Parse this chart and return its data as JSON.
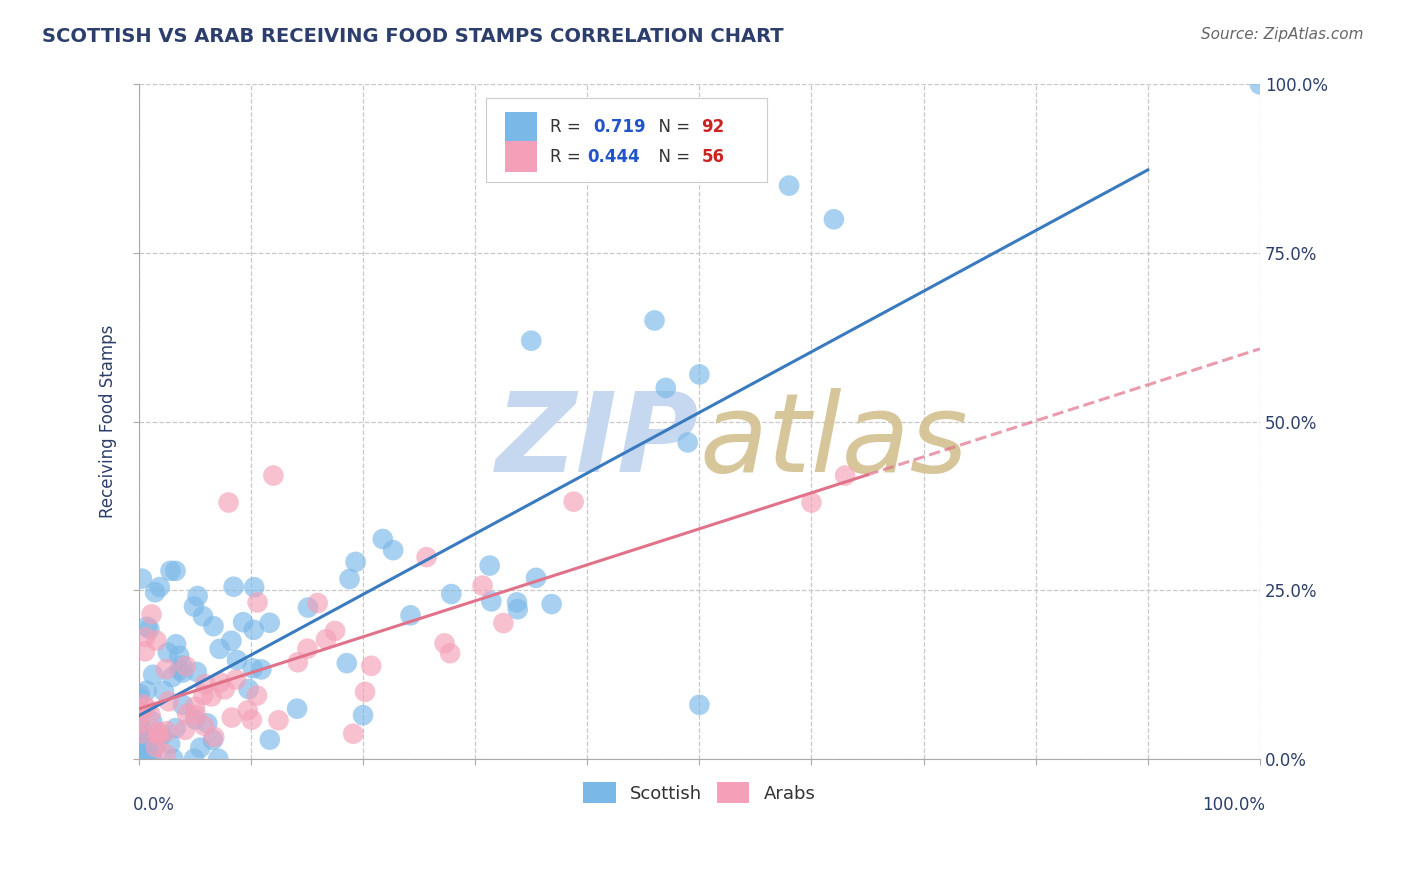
{
  "title": "SCOTTISH VS ARAB RECEIVING FOOD STAMPS CORRELATION CHART",
  "source": "Source: ZipAtlas.com",
  "ylabel": "Receiving Food Stamps",
  "ytick_labels": [
    "0.0%",
    "25.0%",
    "50.0%",
    "75.0%",
    "100.0%"
  ],
  "ytick_positions": [
    0,
    25,
    50,
    75,
    100
  ],
  "xtick_positions": [
    0,
    10,
    20,
    30,
    40,
    50,
    60,
    70,
    80,
    90,
    100
  ],
  "scottish_color": "#7ab8e8",
  "arab_color": "#f4a0b8",
  "scottish_line_color": "#3a7abf",
  "arab_line_color": "#e0728a",
  "background_color": "#ffffff",
  "grid_color": "#c8c8c8",
  "title_color": "#2c3e6b",
  "watermark_zip_color": "#c5d8f0",
  "watermark_atlas_color": "#d4c090",
  "scottish_R": 0.719,
  "scottish_N": 92,
  "arab_R": 0.444,
  "arab_N": 56,
  "legend_text_color_R": "#2255cc",
  "legend_text_color_N": "#cc2222",
  "legend_label_color": "#333333"
}
